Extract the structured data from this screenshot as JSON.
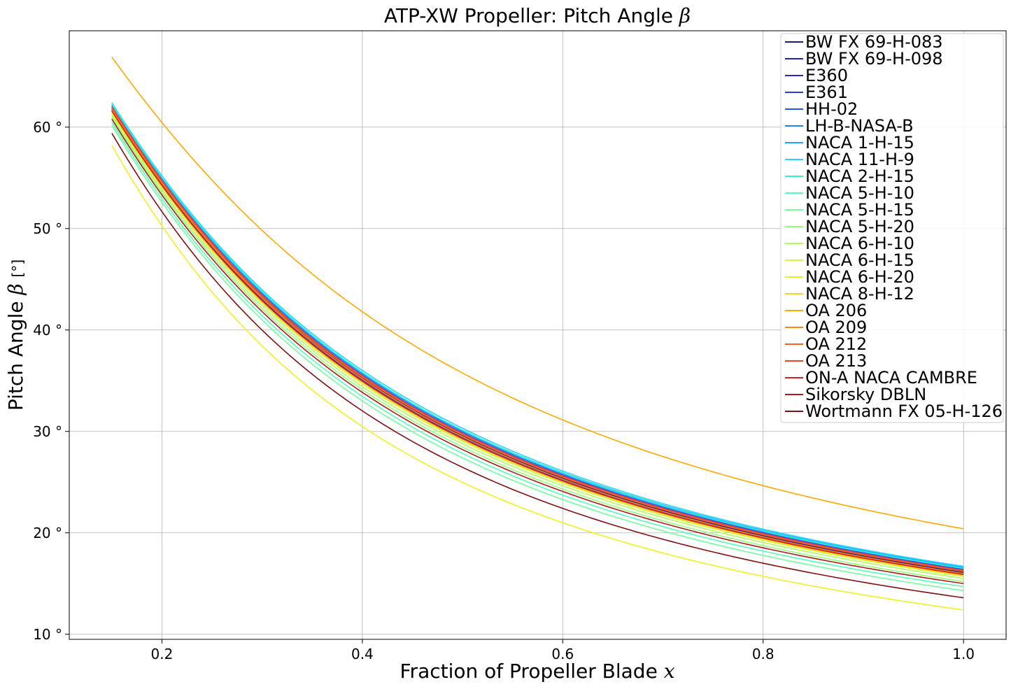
{
  "chart_data": {
    "type": "line",
    "title": "ATP-XW Propeller: Pitch Angle",
    "title_symbol": "β",
    "xlabel": "Fraction of Propeller Blade",
    "xlabel_symbol": "x",
    "ylabel": "Pitch Angle",
    "ylabel_symbol": "β",
    "ylabel_unit": "[°]",
    "xlim": [
      0.1075,
      1.0425
    ],
    "ylim": [
      9.5,
      69.5
    ],
    "xticks": [
      0.2,
      0.4,
      0.6,
      0.8,
      1.0
    ],
    "xtick_labels": [
      "0.2",
      "0.4",
      "0.6",
      "0.8",
      "1.0"
    ],
    "yticks": [
      10,
      20,
      30,
      40,
      50,
      60
    ],
    "ytick_labels": [
      "10 °",
      "20 °",
      "30 °",
      "40 °",
      "50 °",
      "60 °"
    ],
    "grid": true,
    "legend_position": "top-right",
    "x_range": [
      0.15,
      1.0
    ],
    "series": [
      {
        "name": "BW FX 69-H-083",
        "color": "#1a1a80",
        "y_start": 61.8,
        "y_end": 16.1
      },
      {
        "name": "BW FX 69-H-098",
        "color": "#2222a8",
        "y_start": 61.9,
        "y_end": 16.2
      },
      {
        "name": "E360",
        "color": "#2828c8",
        "y_start": 61.7,
        "y_end": 16.0
      },
      {
        "name": "E361",
        "color": "#2a35e0",
        "y_start": 61.6,
        "y_end": 15.9
      },
      {
        "name": "HH-02",
        "color": "#2255f0",
        "y_start": 62.0,
        "y_end": 16.4
      },
      {
        "name": "LH-B-NASA-B",
        "color": "#1e80ff",
        "y_start": 62.1,
        "y_end": 16.5
      },
      {
        "name": "NACA 1-H-15",
        "color": "#1aa8ff",
        "y_start": 62.2,
        "y_end": 16.6
      },
      {
        "name": "NACA 11-H-9",
        "color": "#22d4ff",
        "y_start": 62.4,
        "y_end": 16.7
      },
      {
        "name": "NACA 2-H-15",
        "color": "#30f0d8",
        "y_start": 62.3,
        "y_end": 16.5
      },
      {
        "name": "NACA 5-H-10",
        "color": "#50ffb8",
        "y_start": 60.5,
        "y_end": 14.7
      },
      {
        "name": "NACA 5-H-15",
        "color": "#70ff98",
        "y_start": 60.2,
        "y_end": 14.3
      },
      {
        "name": "NACA 5-H-20",
        "color": "#90ff78",
        "y_start": 61.0,
        "y_end": 15.2
      },
      {
        "name": "NACA 6-H-10",
        "color": "#b0ff58",
        "y_start": 61.2,
        "y_end": 15.5
      },
      {
        "name": "NACA 6-H-15",
        "color": "#d0f838",
        "y_start": 61.4,
        "y_end": 15.7
      },
      {
        "name": "NACA 6-H-20",
        "color": "#f0f020",
        "y_start": 58.2,
        "y_end": 12.4
      },
      {
        "name": "NACA 8-H-12",
        "color": "#ffd020",
        "y_start": 61.5,
        "y_end": 15.8
      },
      {
        "name": "OA 206",
        "color": "#ffa800",
        "y_start": 66.9,
        "y_end": 20.4
      },
      {
        "name": "OA 209",
        "color": "#ff8810",
        "y_start": 61.8,
        "y_end": 16.0
      },
      {
        "name": "OA 212",
        "color": "#ff6020",
        "y_start": 61.9,
        "y_end": 16.2
      },
      {
        "name": "OA 213",
        "color": "#f04028",
        "y_start": 62.0,
        "y_end": 16.3
      },
      {
        "name": "ON-A NACA CAMBRE",
        "color": "#d82020",
        "y_start": 61.6,
        "y_end": 15.9
      },
      {
        "name": "Sikorsky DBLN",
        "color": "#b01818",
        "y_start": 60.8,
        "y_end": 15.0
      },
      {
        "name": "Wortmann FX 05-H-126",
        "color": "#801010",
        "y_start": 59.4,
        "y_end": 13.6
      }
    ]
  }
}
